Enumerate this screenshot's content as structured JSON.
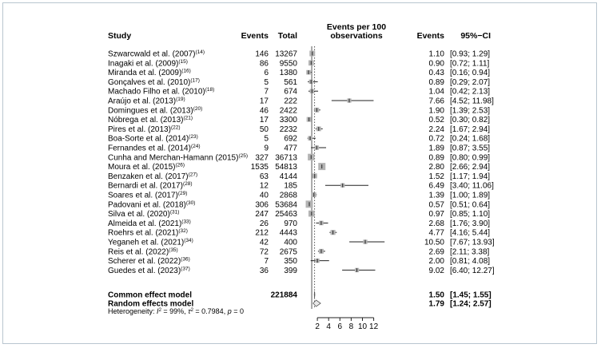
{
  "chart_data": {
    "type": "forest",
    "x_axis": {
      "ticks": [
        2,
        4,
        6,
        8,
        10,
        12
      ]
    },
    "reference_line": 1,
    "pooled_line": 1.5,
    "columns": {
      "study": "Study",
      "events": "Events",
      "total": "Total",
      "plot_title_line1": "Events per 100",
      "plot_title_line2": "observations",
      "events_right": "Events",
      "ci": "95%−CI"
    },
    "studies": [
      {
        "name": "Szwarcwald et al. (2007)",
        "ref": "(14)",
        "events": "146",
        "total": "13267",
        "est": 1.1,
        "lo": 0.93,
        "hi": 1.29,
        "events_txt": "1.10",
        "ci_txt": "[0.93; 1.29]"
      },
      {
        "name": "Inagaki et al. (2009)",
        "ref": "(15)",
        "events": "86",
        "total": "9550",
        "est": 0.9,
        "lo": 0.72,
        "hi": 1.11,
        "events_txt": "0.90",
        "ci_txt": "[0.72; 1.11]"
      },
      {
        "name": "Miranda et al. (2009)",
        "ref": "(16)",
        "events": "6",
        "total": "1380",
        "est": 0.43,
        "lo": 0.16,
        "hi": 0.94,
        "events_txt": "0.43",
        "ci_txt": "[0.16; 0.94]"
      },
      {
        "name": "Gonçalves et al. (2010)",
        "ref": "(17)",
        "events": "5",
        "total": "561",
        "est": 0.89,
        "lo": 0.29,
        "hi": 2.07,
        "events_txt": "0.89",
        "ci_txt": "[0.29; 2.07]"
      },
      {
        "name": "Machado Filho et al. (2010)",
        "ref": "(18)",
        "events": "7",
        "total": "674",
        "est": 1.04,
        "lo": 0.42,
        "hi": 2.13,
        "events_txt": "1.04",
        "ci_txt": "[0.42; 2.13]"
      },
      {
        "name": "Araújo et al. (2013)",
        "ref": "(19)",
        "events": "17",
        "total": "222",
        "est": 7.66,
        "lo": 4.52,
        "hi": 11.98,
        "events_txt": "7.66",
        "ci_txt": "[4.52; 11.98]"
      },
      {
        "name": "Domingues et al. (2013)",
        "ref": "(20)",
        "events": "46",
        "total": "2422",
        "est": 1.9,
        "lo": 1.39,
        "hi": 2.53,
        "events_txt": "1.90",
        "ci_txt": "[1.39; 2.53]"
      },
      {
        "name": "Nóbrega et al. (2013)",
        "ref": "(21)",
        "events": "17",
        "total": "3300",
        "est": 0.52,
        "lo": 0.3,
        "hi": 0.82,
        "events_txt": "0.52",
        "ci_txt": "[0.30; 0.82]"
      },
      {
        "name": "Pires et al. (2013)",
        "ref": "(22)",
        "events": "50",
        "total": "2232",
        "est": 2.24,
        "lo": 1.67,
        "hi": 2.94,
        "events_txt": "2.24",
        "ci_txt": "[1.67; 2.94]"
      },
      {
        "name": "Boa-Sorte et al. (2014)",
        "ref": "(23)",
        "events": "5",
        "total": "692",
        "est": 0.72,
        "lo": 0.24,
        "hi": 1.68,
        "events_txt": "0.72",
        "ci_txt": "[0.24; 1.68]"
      },
      {
        "name": "Fernandes et al. (2014)",
        "ref": "(24)",
        "events": "9",
        "total": "477",
        "est": 1.89,
        "lo": 0.87,
        "hi": 3.55,
        "events_txt": "1.89",
        "ci_txt": "[0.87; 3.55]"
      },
      {
        "name": "Cunha and Merchan-Hamann (2015)",
        "ref": "(25)",
        "events": "327",
        "total": "36713",
        "est": 0.89,
        "lo": 0.8,
        "hi": 0.99,
        "events_txt": "0.89",
        "ci_txt": "[0.80; 0.99]"
      },
      {
        "name": "Moura et al. (2015)",
        "ref": "(26)",
        "events": "1535",
        "total": "54813",
        "est": 2.8,
        "lo": 2.66,
        "hi": 2.94,
        "events_txt": "2.80",
        "ci_txt": "[2.66; 2.94]"
      },
      {
        "name": "Benzaken et al. (2017)",
        "ref": "(27)",
        "events": "63",
        "total": "4144",
        "est": 1.52,
        "lo": 1.17,
        "hi": 1.94,
        "events_txt": "1.52",
        "ci_txt": "[1.17; 1.94]"
      },
      {
        "name": "Bernardi et al. (2017)",
        "ref": "(28)",
        "events": "12",
        "total": "185",
        "est": 6.49,
        "lo": 3.4,
        "hi": 11.06,
        "events_txt": "6.49",
        "ci_txt": "[3.40; 11.06]"
      },
      {
        "name": "Soares et al. (2017)",
        "ref": "(29)",
        "events": "40",
        "total": "2868",
        "est": 1.39,
        "lo": 1.0,
        "hi": 1.89,
        "events_txt": "1.39",
        "ci_txt": "[1.00; 1.89]"
      },
      {
        "name": "Padovani et al. (2018)",
        "ref": "(30)",
        "events": "306",
        "total": "53684",
        "est": 0.57,
        "lo": 0.51,
        "hi": 0.64,
        "events_txt": "0.57",
        "ci_txt": "[0.51; 0.64]"
      },
      {
        "name": "Silva et al. (2020)",
        "ref": "(31)",
        "events": "247",
        "total": "25463",
        "est": 0.97,
        "lo": 0.85,
        "hi": 1.1,
        "events_txt": "0.97",
        "ci_txt": "[0.85; 1.10]"
      },
      {
        "name": "Almeida et al. (2021)",
        "ref": "(33)",
        "events": "26",
        "total": "970",
        "est": 2.68,
        "lo": 1.76,
        "hi": 3.9,
        "events_txt": "2.68",
        "ci_txt": "[1.76; 3.90]"
      },
      {
        "name": "Roehrs et al. (2021)",
        "ref": "(32)",
        "events": "212",
        "total": "4443",
        "est": 4.77,
        "lo": 4.16,
        "hi": 5.44,
        "events_txt": "4.77",
        "ci_txt": "[4.16; 5.44]"
      },
      {
        "name": "Yeganeh et al. (2021)",
        "ref": "(34)",
        "events": "42",
        "total": "400",
        "est": 10.5,
        "lo": 7.67,
        "hi": 13.93,
        "events_txt": "10.50",
        "ci_txt": "[7.67; 13.93]"
      },
      {
        "name": "Reis et al. (2022)",
        "ref": "(35)",
        "events": "72",
        "total": "2675",
        "est": 2.69,
        "lo": 2.11,
        "hi": 3.38,
        "events_txt": "2.69",
        "ci_txt": "[2.11; 3.38]"
      },
      {
        "name": "Scherer et al. (2022)",
        "ref": "(36)",
        "events": "7",
        "total": "350",
        "est": 2.0,
        "lo": 0.81,
        "hi": 4.08,
        "events_txt": "2.00",
        "ci_txt": "[0.81; 4.08]"
      },
      {
        "name": "Guedes et al. (2023)",
        "ref": "(37)",
        "events": "36",
        "total": "399",
        "est": 9.02,
        "lo": 6.4,
        "hi": 12.27,
        "events_txt": "9.02",
        "ci_txt": "[6.40; 12.27]"
      }
    ],
    "common_effect": {
      "label": "Common effect model",
      "total": "221884",
      "est": 1.5,
      "lo": 1.45,
      "hi": 1.55,
      "events_txt": "1.50",
      "ci_txt": "[1.45; 1.55]"
    },
    "random_effects": {
      "label": "Random effects model",
      "est": 1.79,
      "lo": 1.24,
      "hi": 2.57,
      "events_txt": "1.79",
      "ci_txt": "[1.24; 2.57]"
    },
    "heterogeneity": {
      "prefix": "Heterogeneity: ",
      "i2": "I",
      "i2_value": " = 99%, ",
      "tau": "τ",
      "tau_value": " = 0.7984, ",
      "p": "p",
      "p_value": " = 0"
    },
    "colors": {
      "square": "#b3b3b3",
      "line": "#222222",
      "diamond_fill": "#e8e8e8",
      "frame": "#b9c6d0"
    }
  }
}
